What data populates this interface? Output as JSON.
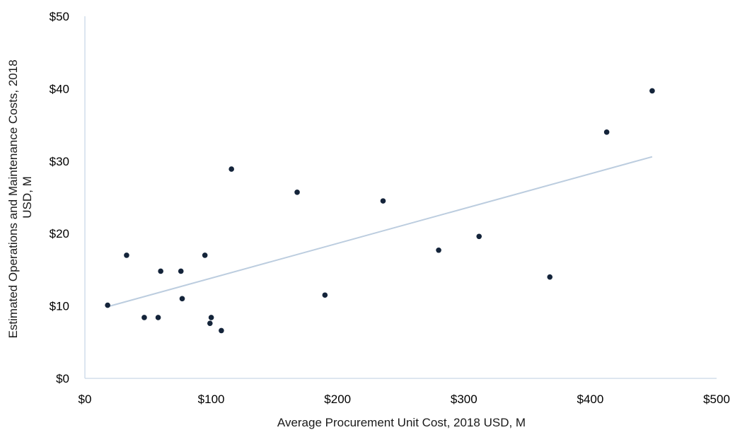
{
  "chart_data": {
    "type": "scatter",
    "title": "",
    "xlabel": "Average Procurement Unit Cost, 2018 USD, M",
    "ylabel_lines": [
      "Estimated Operations and Maintenance Costs, 2018",
      "USD, M"
    ],
    "xlim": [
      0,
      500
    ],
    "ylim": [
      0,
      50
    ],
    "x_ticks": [
      0,
      100,
      200,
      300,
      400,
      500
    ],
    "y_ticks": [
      0,
      10,
      20,
      30,
      40,
      50
    ],
    "x_tick_labels": [
      "$0",
      "$100",
      "$200",
      "$300",
      "$400",
      "$500"
    ],
    "y_tick_labels": [
      "$0",
      "$10",
      "$20",
      "$30",
      "$40",
      "$50"
    ],
    "grid": false,
    "legend": "none",
    "colors": {
      "points": "#14243a",
      "trendline": "#bccddf",
      "axis": "#c9d8e8"
    },
    "points": [
      {
        "x": 18,
        "y": 10.1
      },
      {
        "x": 33,
        "y": 17.0
      },
      {
        "x": 47,
        "y": 8.4
      },
      {
        "x": 58,
        "y": 8.4
      },
      {
        "x": 60,
        "y": 14.8
      },
      {
        "x": 76,
        "y": 14.8
      },
      {
        "x": 77,
        "y": 11.0
      },
      {
        "x": 95,
        "y": 17.0
      },
      {
        "x": 99,
        "y": 7.6
      },
      {
        "x": 100,
        "y": 8.4
      },
      {
        "x": 108,
        "y": 6.6
      },
      {
        "x": 116,
        "y": 28.9
      },
      {
        "x": 168,
        "y": 25.7
      },
      {
        "x": 190,
        "y": 11.5
      },
      {
        "x": 236,
        "y": 24.5
      },
      {
        "x": 280,
        "y": 17.7
      },
      {
        "x": 312,
        "y": 19.6
      },
      {
        "x": 368,
        "y": 14.0
      },
      {
        "x": 413,
        "y": 34.0
      },
      {
        "x": 449,
        "y": 39.7
      }
    ],
    "trendline": {
      "type": "linear",
      "x": [
        18,
        449
      ],
      "y": [
        9.9,
        30.6
      ]
    }
  }
}
